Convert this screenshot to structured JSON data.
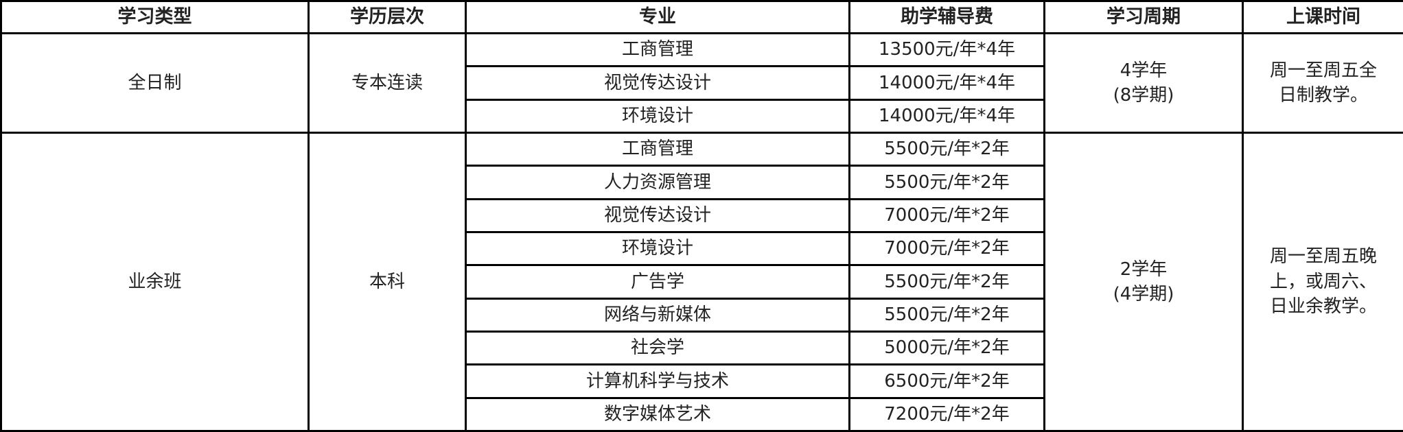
{
  "headers": [
    "学习类型",
    "学历层次",
    "专业",
    "助学辅导费",
    "学习周期",
    "上课时间"
  ],
  "groups": [
    {
      "type": "全日制",
      "level": "专本连读",
      "period": "4学年\n(8学期)",
      "schedule": "周一至周五全\n日制教学。",
      "rows": [
        {
          "major": "工商管理",
          "fee": "13500元/年*4年"
        },
        {
          "major": "视觉传达设计",
          "fee": "14000元/年*4年"
        },
        {
          "major": "环境设计",
          "fee": "14000元/年*4年"
        }
      ]
    },
    {
      "type": "业余班",
      "level": "本科",
      "period": "2学年\n(4学期)",
      "schedule": "周一至周五晚\n上，或周六、\n日业余教学。",
      "rows": [
        {
          "major": "工商管理",
          "fee": "5500元/年*2年"
        },
        {
          "major": "人力资源管理",
          "fee": "5500元/年*2年"
        },
        {
          "major": "视觉传达设计",
          "fee": "7000元/年*2年"
        },
        {
          "major": "环境设计",
          "fee": "7000元/年*2年"
        },
        {
          "major": "广告学",
          "fee": "5500元/年*2年"
        },
        {
          "major": "网络与新媒体",
          "fee": "5500元/年*2年"
        },
        {
          "major": "社会学",
          "fee": "5000元/年*2年"
        },
        {
          "major": "计算机科学与技术",
          "fee": "6500元/年*2年"
        },
        {
          "major": "数字媒体艺术",
          "fee": "7200元/年*2年"
        }
      ]
    }
  ]
}
